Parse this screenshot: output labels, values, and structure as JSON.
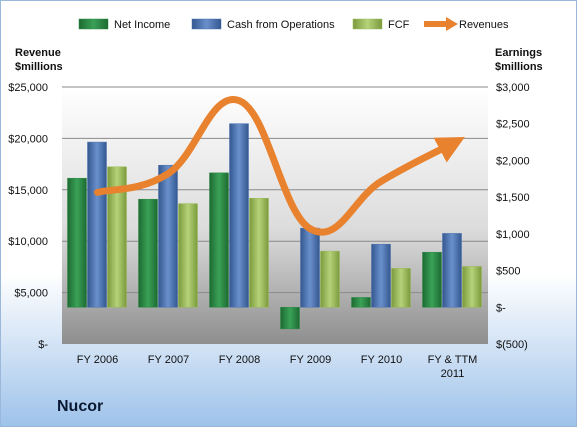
{
  "company": "Nucor",
  "chart_data": {
    "type": "bar",
    "categories": [
      "FY 2006",
      "FY 2007",
      "FY 2008",
      "FY 2009",
      "FY 2010",
      "FY & TTM 2011"
    ],
    "category_lines": [
      [
        "FY 2006"
      ],
      [
        "FY 2007"
      ],
      [
        "FY 2008"
      ],
      [
        "FY 2009"
      ],
      [
        "FY 2010"
      ],
      [
        "FY & TTM",
        "2011"
      ]
    ],
    "series": [
      {
        "name": "Net Income",
        "axis": "right",
        "type": "bar",
        "color": "#2e8b45",
        "values": [
          1758,
          1472,
          1831,
          -294,
          134,
          750
        ]
      },
      {
        "name": "Cash from Operations",
        "axis": "right",
        "type": "bar",
        "color": "#4b72b0",
        "values": [
          2250,
          1935,
          2501,
          1078,
          859,
          1006
        ]
      },
      {
        "name": "FCF",
        "axis": "right",
        "type": "bar",
        "color": "#9bbb59",
        "values": [
          1914,
          1412,
          1485,
          765,
          530,
          556
        ]
      },
      {
        "name": "Revenues",
        "axis": "left",
        "type": "line",
        "color": "#e8822e",
        "values": [
          14751,
          16593,
          23663,
          11190,
          15845,
          19500
        ]
      }
    ],
    "left_axis": {
      "label_lines": [
        "Revenue",
        "$millions"
      ],
      "ylim": [
        0,
        25000
      ],
      "ticks": [
        0,
        5000,
        10000,
        15000,
        20000,
        25000
      ],
      "tick_labels": [
        "$-",
        "$5,000",
        "$10,000",
        "$15,000",
        "$20,000",
        "$25,000"
      ]
    },
    "right_axis": {
      "label_lines": [
        "Earnings",
        "$millions"
      ],
      "ylim": [
        -500,
        3000
      ],
      "ticks": [
        -500,
        0,
        500,
        1000,
        1500,
        2000,
        2500,
        3000
      ],
      "tick_labels": [
        "$(500)",
        "$-",
        "$500",
        "$1,000",
        "$1,500",
        "$2,000",
        "$2,500",
        "$3,000"
      ]
    },
    "legend_position": "top",
    "grid": true
  }
}
